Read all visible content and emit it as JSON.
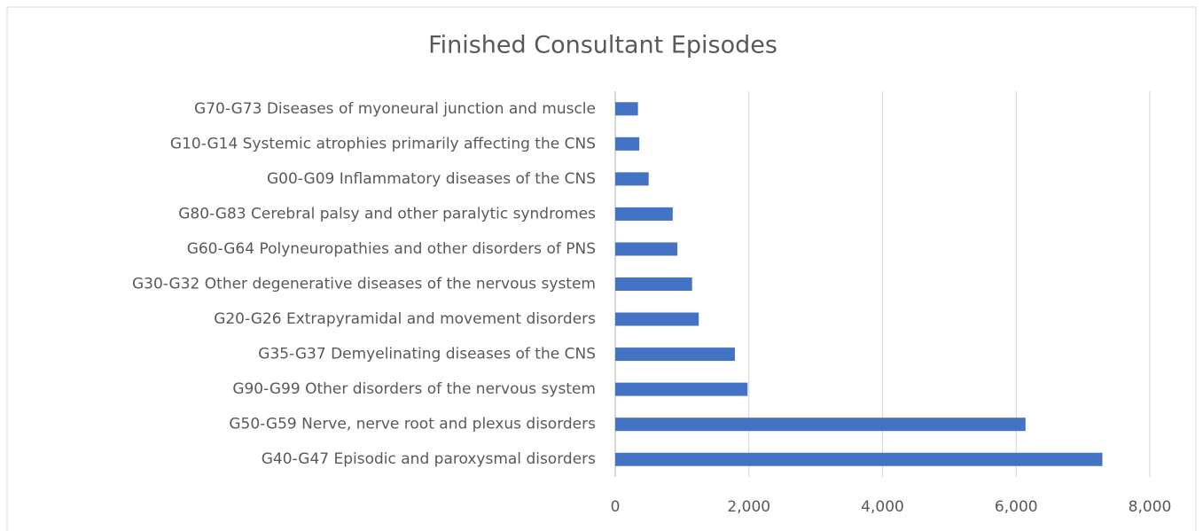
{
  "chart_data": {
    "type": "bar",
    "orientation": "horizontal",
    "title": "Finished Consultant Episodes",
    "categories": [
      "G70-G73 Diseases of myoneural junction and muscle",
      "G10-G14 Systemic atrophies primarily affecting the CNS",
      "G00-G09 Inflammatory diseases of the CNS",
      "G80-G83 Cerebral palsy and other paralytic syndromes",
      "G60-G64 Polyneuropathies and other disorders of PNS",
      "G30-G32 Other degenerative diseases of the nervous system",
      "G20-G26 Extrapyramidal and movement disorders",
      "G35-G37 Demyelinating diseases of the CNS",
      "G90-G99 Other disorders of the nervous system",
      "G50-G59 Nerve, nerve root and plexus disorders",
      "G40-G47 Episodic and paroxysmal disorders"
    ],
    "values": [
      340,
      360,
      500,
      860,
      930,
      1150,
      1250,
      1790,
      1980,
      6140,
      7290
    ],
    "color": "#4472c4",
    "xlim": [
      0,
      8000
    ],
    "xticks": [
      0,
      {
        "value": 2000,
        "label": "2,000"
      },
      {
        "value": 4000,
        "label": "4,000"
      },
      {
        "value": 6000,
        "label": "6,000"
      },
      {
        "value": 8000,
        "label": "8,000"
      }
    ],
    "grid": true
  }
}
